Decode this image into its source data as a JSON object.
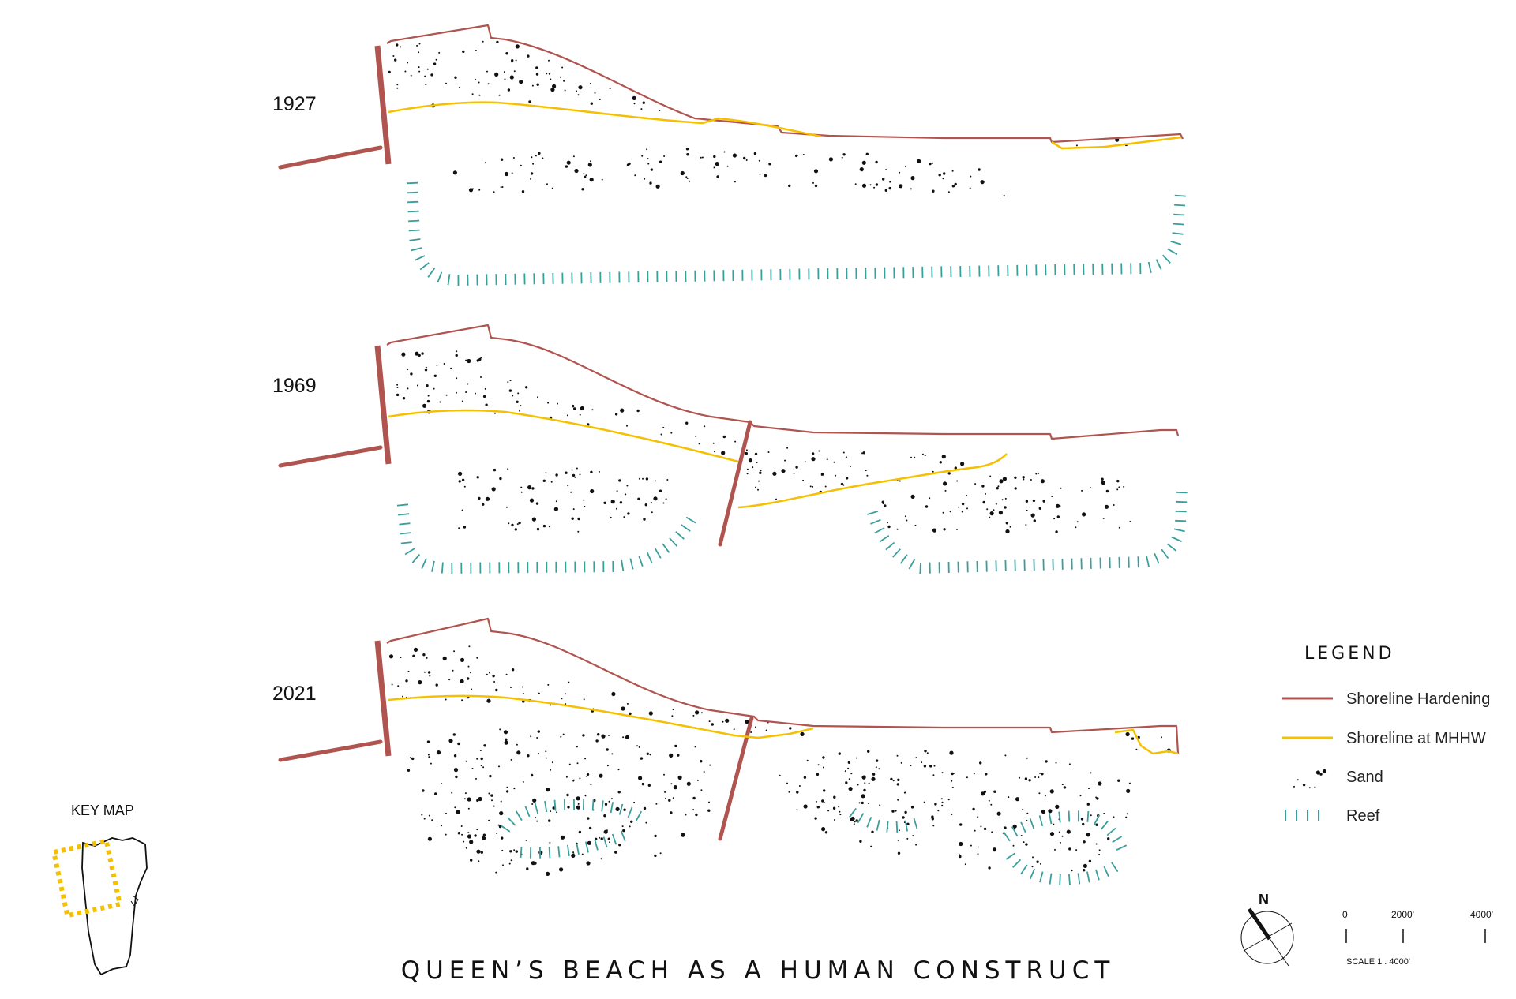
{
  "title": "QUEEN’S BEACH AS A HUMAN CONSTRUCT",
  "colors": {
    "hardening": "#b0544f",
    "mhhw": "#f5c000",
    "sand": "#111111",
    "reef": "#3a9e9b",
    "keymap_outline": "#111111",
    "keymap_highlight": "#f5c000"
  },
  "panels": [
    {
      "year": "1927"
    },
    {
      "year": "1969"
    },
    {
      "year": "2021"
    }
  ],
  "legend": {
    "title": "LEGEND",
    "items": [
      {
        "label": "Shoreline Hardening",
        "symbol": "hardening-line"
      },
      {
        "label": "Shoreline at MHHW",
        "symbol": "mhhw-line"
      },
      {
        "label": "Sand",
        "symbol": "sand-dots"
      },
      {
        "label": "Reef",
        "symbol": "reef-ticks"
      }
    ]
  },
  "key_map": {
    "title": "KEY MAP"
  },
  "north_arrow": {
    "label": "N"
  },
  "scale_bar": {
    "ticks": [
      "0",
      "2000'",
      "4000'"
    ],
    "label": "SCALE 1 : 4000'"
  }
}
